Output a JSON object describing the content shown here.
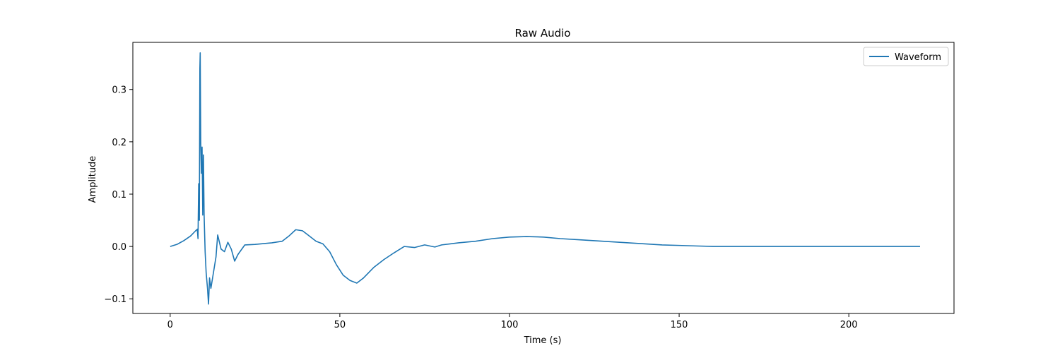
{
  "chart_data": {
    "type": "line",
    "title": "Raw Audio",
    "xlabel": "Time (s)",
    "ylabel": "Amplitude",
    "xlim": [
      -11,
      231
    ],
    "ylim": [
      -0.128,
      0.39
    ],
    "xticks": [
      0,
      50,
      100,
      150,
      200
    ],
    "xtick_labels": [
      "0",
      "50",
      "100",
      "150",
      "200"
    ],
    "yticks": [
      -0.1,
      0.0,
      0.1,
      0.2,
      0.3
    ],
    "ytick_labels": [
      "−0.1",
      "0.0",
      "0.1",
      "0.2",
      "0.3"
    ],
    "grid": false,
    "legend_position": "top-right",
    "series": [
      {
        "name": "Waveform",
        "color": "#1f77b4",
        "x": [
          0,
          2,
          4,
          6,
          7.5,
          8.0,
          8.2,
          8.4,
          8.6,
          8.75,
          8.85,
          9.0,
          9.2,
          9.4,
          9.6,
          9.8,
          10.0,
          10.3,
          10.6,
          11.0,
          11.3,
          11.6,
          12.0,
          12.5,
          13.0,
          13.5,
          14.0,
          15.0,
          16.0,
          17.0,
          18.0,
          19.0,
          20.0,
          22.0,
          25.0,
          30.0,
          33.0,
          35.0,
          37.0,
          39.0,
          41.0,
          43.0,
          45.0,
          47.0,
          49.0,
          51.0,
          53.0,
          55.0,
          57.0,
          60.0,
          63.0,
          66.0,
          69.0,
          72.0,
          75.0,
          78.0,
          80.0,
          85.0,
          90.0,
          95.0,
          100.0,
          105.0,
          110.0,
          115.0,
          120.0,
          125.0,
          130.0,
          135.0,
          140.0,
          145.0,
          150.0,
          155.0,
          160.0,
          165.0,
          170.0,
          180.0,
          190.0,
          200.0,
          210.0,
          221.0
        ],
        "y": [
          0.0,
          0.004,
          0.011,
          0.02,
          0.03,
          0.033,
          0.015,
          0.12,
          0.05,
          0.34,
          0.37,
          0.2,
          0.14,
          0.19,
          0.06,
          0.175,
          0.06,
          -0.01,
          -0.05,
          -0.08,
          -0.11,
          -0.06,
          -0.08,
          -0.06,
          -0.04,
          -0.02,
          0.022,
          -0.005,
          -0.01,
          0.008,
          -0.005,
          -0.028,
          -0.015,
          0.003,
          0.004,
          0.007,
          0.01,
          0.02,
          0.032,
          0.03,
          0.02,
          0.01,
          0.005,
          -0.01,
          -0.035,
          -0.055,
          -0.065,
          -0.07,
          -0.06,
          -0.04,
          -0.025,
          -0.012,
          0.0,
          -0.002,
          0.003,
          -0.001,
          0.003,
          0.007,
          0.01,
          0.015,
          0.018,
          0.019,
          0.018,
          0.015,
          0.013,
          0.011,
          0.009,
          0.007,
          0.005,
          0.003,
          0.002,
          0.001,
          0.0,
          0.0,
          0.0,
          0.0,
          0.0,
          0.0,
          0.0,
          0.0
        ]
      }
    ]
  }
}
